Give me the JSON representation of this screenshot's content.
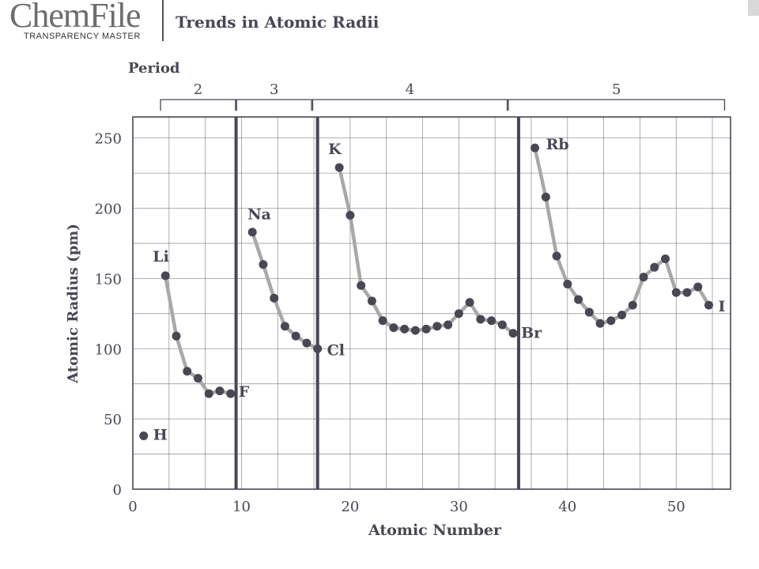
{
  "header": {
    "logo": "ChemFile",
    "logo_subtitle": "TRANSPARENCY MASTER",
    "title": "Trends in Atomic Radii"
  },
  "chart_data": {
    "type": "line",
    "xlabel": "Atomic Number",
    "ylabel": "Atomic Radius (pm)",
    "xlim": [
      0,
      55
    ],
    "ylim": [
      0,
      265
    ],
    "xticks": [
      0,
      10,
      20,
      30,
      40,
      50
    ],
    "yticks": [
      0,
      50,
      100,
      150,
      200,
      250
    ],
    "grid": true,
    "period_label": "Period",
    "periods": [
      {
        "label": "2",
        "from": 3,
        "to": 9
      },
      {
        "label": "3",
        "from": 10,
        "to": 16
      },
      {
        "label": "4",
        "from": 17,
        "to": 34
      },
      {
        "label": "5",
        "from": 35,
        "to": 54
      }
    ],
    "period_dividers": [
      9.5,
      17,
      35.5
    ],
    "series": [
      {
        "points": [
          [
            1,
            38
          ]
        ]
      },
      {
        "points": [
          [
            3,
            152
          ],
          [
            4,
            109
          ],
          [
            5,
            84
          ],
          [
            6,
            79
          ],
          [
            7,
            68
          ],
          [
            8,
            70
          ],
          [
            9,
            68
          ]
        ]
      },
      {
        "points": [
          [
            11,
            183
          ],
          [
            12,
            160
          ],
          [
            13,
            136
          ],
          [
            14,
            116
          ],
          [
            15,
            109
          ],
          [
            16,
            104
          ],
          [
            17,
            100
          ]
        ]
      },
      {
        "points": [
          [
            19,
            229
          ],
          [
            20,
            195
          ],
          [
            21,
            145
          ],
          [
            22,
            134
          ],
          [
            23,
            120
          ],
          [
            24,
            115
          ],
          [
            25,
            114
          ],
          [
            26,
            113
          ],
          [
            27,
            114
          ],
          [
            28,
            116
          ],
          [
            29,
            117
          ],
          [
            30,
            125
          ],
          [
            31,
            133
          ],
          [
            32,
            121
          ],
          [
            33,
            120
          ],
          [
            34,
            117
          ],
          [
            35,
            111
          ]
        ]
      },
      {
        "points": [
          [
            37,
            243
          ],
          [
            38,
            208
          ],
          [
            39,
            166
          ],
          [
            40,
            146
          ],
          [
            41,
            135
          ],
          [
            42,
            126
          ],
          [
            43,
            118
          ],
          [
            44,
            120
          ],
          [
            45,
            124
          ],
          [
            46,
            131
          ],
          [
            47,
            151
          ],
          [
            48,
            158
          ],
          [
            49,
            164
          ],
          [
            50,
            140
          ],
          [
            51,
            140
          ],
          [
            52,
            144
          ],
          [
            53,
            131
          ]
        ]
      }
    ],
    "annotations": [
      {
        "text": "H",
        "x": 1,
        "y": 38
      },
      {
        "text": "Li",
        "x": 3,
        "y": 152
      },
      {
        "text": "F",
        "x": 9,
        "y": 68
      },
      {
        "text": "Na",
        "x": 11,
        "y": 183
      },
      {
        "text": "Cl",
        "x": 17,
        "y": 100
      },
      {
        "text": "K",
        "x": 19,
        "y": 229
      },
      {
        "text": "Br",
        "x": 35,
        "y": 111
      },
      {
        "text": "Rb",
        "x": 37,
        "y": 243
      },
      {
        "text": "I",
        "x": 53,
        "y": 131
      }
    ],
    "colors": {
      "line": "#a8a8a8",
      "point": "#4a4654",
      "grid": "#4a4654",
      "divider": "#4a4654"
    }
  }
}
